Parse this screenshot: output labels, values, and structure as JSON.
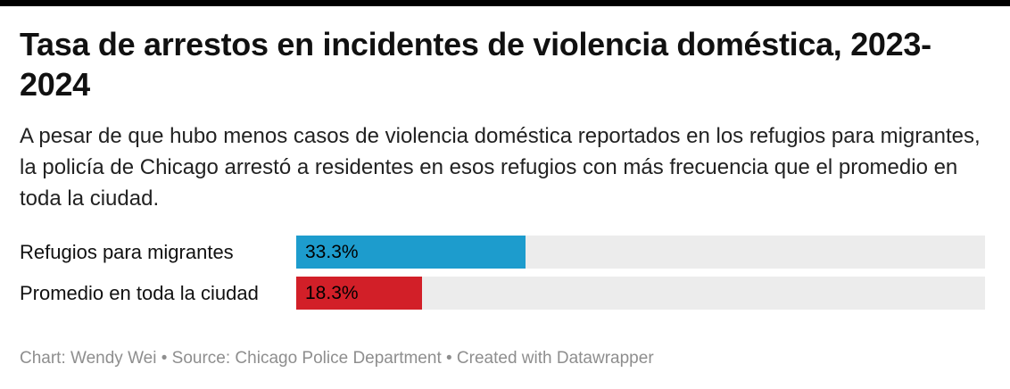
{
  "top_bar_color": "#000000",
  "header": {
    "title": "Tasa de arrestos en incidentes de violencia doméstica, 2023-2024",
    "description": "A pesar de que hubo menos casos de violencia doméstica reportados en los refugios para migrantes, la policía de Chicago arrestó a residentes en esos refugios con más frecuencia que el promedio en toda la ciudad."
  },
  "chart_data": {
    "type": "bar",
    "orientation": "horizontal",
    "title": "Tasa de arrestos en incidentes de violencia doméstica, 2023-2024",
    "categories": [
      "Refugios para migrantes",
      "Promedio en toda la ciudad"
    ],
    "values": [
      33.3,
      18.3
    ],
    "value_labels": [
      "33.3%",
      "18.3%"
    ],
    "colors": [
      "#1d9ccd",
      "#d21f28"
    ],
    "track_color": "#ececec",
    "xlabel": "",
    "ylabel": "",
    "xlim": [
      0,
      100
    ],
    "grid": false,
    "legend": "none",
    "value_label_position": "inside-left"
  },
  "footer": {
    "text": "Chart: Wendy Wei • Source: Chicago Police Department • Created with Datawrapper"
  }
}
